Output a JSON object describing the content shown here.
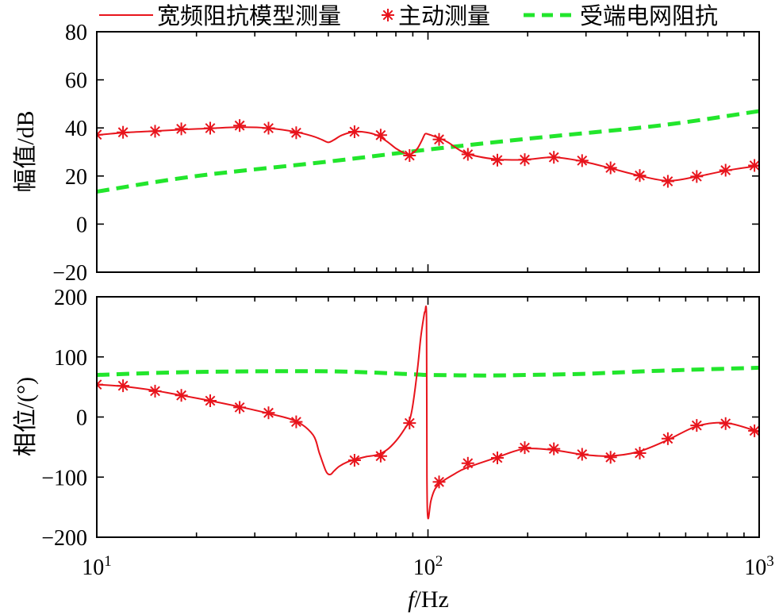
{
  "chart_data": {
    "type": "line",
    "legend": {
      "position": "top",
      "entries": [
        {
          "name": "宽频阻抗模型测量",
          "style": "solid",
          "color": "#e8141c"
        },
        {
          "name": "主动测量",
          "style": "marker-star",
          "color": "#e8141c"
        },
        {
          "name": "受端电网阻抗",
          "style": "dashed",
          "color": "#22e62c"
        }
      ]
    },
    "xlabel": "f/Hz",
    "xscale": "log",
    "xlim": [
      10,
      1000
    ],
    "xticks": [
      {
        "value": 10,
        "base": "10",
        "exp": "1"
      },
      {
        "value": 100,
        "base": "10",
        "exp": "2"
      },
      {
        "value": 1000,
        "base": "10",
        "exp": "3"
      }
    ],
    "subplots": [
      {
        "id": "magnitude",
        "ylabel": "幅值/dB",
        "ylim": [
          -20,
          80
        ],
        "yticks": [
          -20,
          0,
          20,
          40,
          60,
          80
        ],
        "ytick_labels": [
          "−20",
          "0",
          "20",
          "40",
          "60",
          "80"
        ],
        "series": [
          {
            "name": "宽频阻抗模型测量",
            "x": [
              10,
              12,
              15,
              18,
              22,
              27,
              33,
              40,
              45,
              48,
              50,
              52,
              55,
              60,
              65,
              70,
              75,
              80,
              85,
              88,
              90,
              93,
              96,
              98,
              100,
              103,
              108,
              115,
              130,
              160,
              195,
              240,
              290,
              350,
              430,
              530,
              650,
              800,
              1000
            ],
            "y": [
              37,
              38,
              38.7,
              39.3,
              39.8,
              40.3,
              39.9,
              38.3,
              36.5,
              35,
              34,
              35,
              37,
              38.4,
              38.2,
              37,
              34.5,
              31.5,
              29.5,
              28.9,
              29.5,
              31.5,
              35,
              37.5,
              37.4,
              36.8,
              35.8,
              34,
              29.5,
              27,
              26.8,
              27.8,
              26.2,
              23.5,
              20.3,
              18,
              19.8,
              22.3,
              24.3
            ]
          },
          {
            "name": "主动测量",
            "x": [
              10,
              12,
              15,
              18,
              22,
              27,
              33,
              40,
              60,
              72,
              88,
              108,
              132,
              162,
              196,
              240,
              292,
              356,
              436,
              530,
              648,
              792,
              968
            ],
            "y": [
              37.2,
              38.2,
              38.6,
              39.6,
              39.9,
              41,
              39.9,
              38,
              38.4,
              37,
              28.5,
              35.2,
              29,
              26.6,
              26.8,
              27.8,
              26.4,
              23.4,
              20.2,
              17.8,
              19.8,
              22.4,
              24.4
            ]
          },
          {
            "name": "受端电网阻抗",
            "x": [
              10,
              20,
              50,
              100,
              200,
              500,
              1000
            ],
            "y": [
              13.5,
              20,
              26,
              31,
              35.5,
              41,
              47
            ]
          }
        ]
      },
      {
        "id": "phase",
        "ylabel": "相位/(°)",
        "ylim": [
          -200,
          200
        ],
        "yticks": [
          -200,
          -100,
          0,
          100,
          200
        ],
        "ytick_labels": [
          "−200",
          "−100",
          "0",
          "100",
          "200"
        ],
        "series": [
          {
            "name": "宽频阻抗模型测量",
            "x": [
              10,
              12,
              15,
              18,
              22,
              27,
              33,
              40,
              45,
              47,
              49,
              50,
              51,
              52,
              54,
              57,
              60,
              65,
              70,
              75,
              80,
              85,
              88,
              90,
              93,
              95,
              97,
              98,
              99,
              99.3,
              100,
              102,
              105,
              110,
              120,
              130,
              160,
              195,
              240,
              290,
              350,
              430,
              530,
              650,
              800,
              1000
            ],
            "y": [
              54,
              51,
              44,
              36,
              27,
              17,
              6,
              -7,
              -30,
              -60,
              -88,
              -95,
              -95,
              -90,
              -82,
              -75,
              -71,
              -66,
              -63,
              -55,
              -40,
              -20,
              -5,
              20,
              80,
              130,
              165,
              175,
              160,
              -100,
              -168,
              -140,
              -120,
              -108,
              -95,
              -85,
              -68,
              -53,
              -55,
              -62,
              -65,
              -58,
              -38,
              -15,
              -10,
              -25
            ]
          },
          {
            "name": "主动测量",
            "x": [
              10,
              12,
              15,
              18,
              22,
              27,
              33,
              40,
              60,
              72,
              88,
              108,
              132,
              162,
              196,
              240,
              292,
              356,
              436,
              530,
              648,
              792,
              968
            ],
            "y": [
              54,
              52,
              43,
              36,
              27,
              16,
              7,
              -8,
              -72,
              -65,
              -10,
              -108,
              -77,
              -68,
              -51,
              -53,
              -62,
              -67,
              -60,
              -36,
              -14,
              -11,
              -23
            ]
          },
          {
            "name": "受端电网阻抗",
            "x": [
              10,
              20,
              50,
              90,
              100,
              150,
              200,
              300,
              500,
              1000
            ],
            "y": [
              70,
              75,
              76,
              71,
              70,
              69,
              70,
              72,
              77,
              82
            ]
          }
        ]
      }
    ]
  }
}
